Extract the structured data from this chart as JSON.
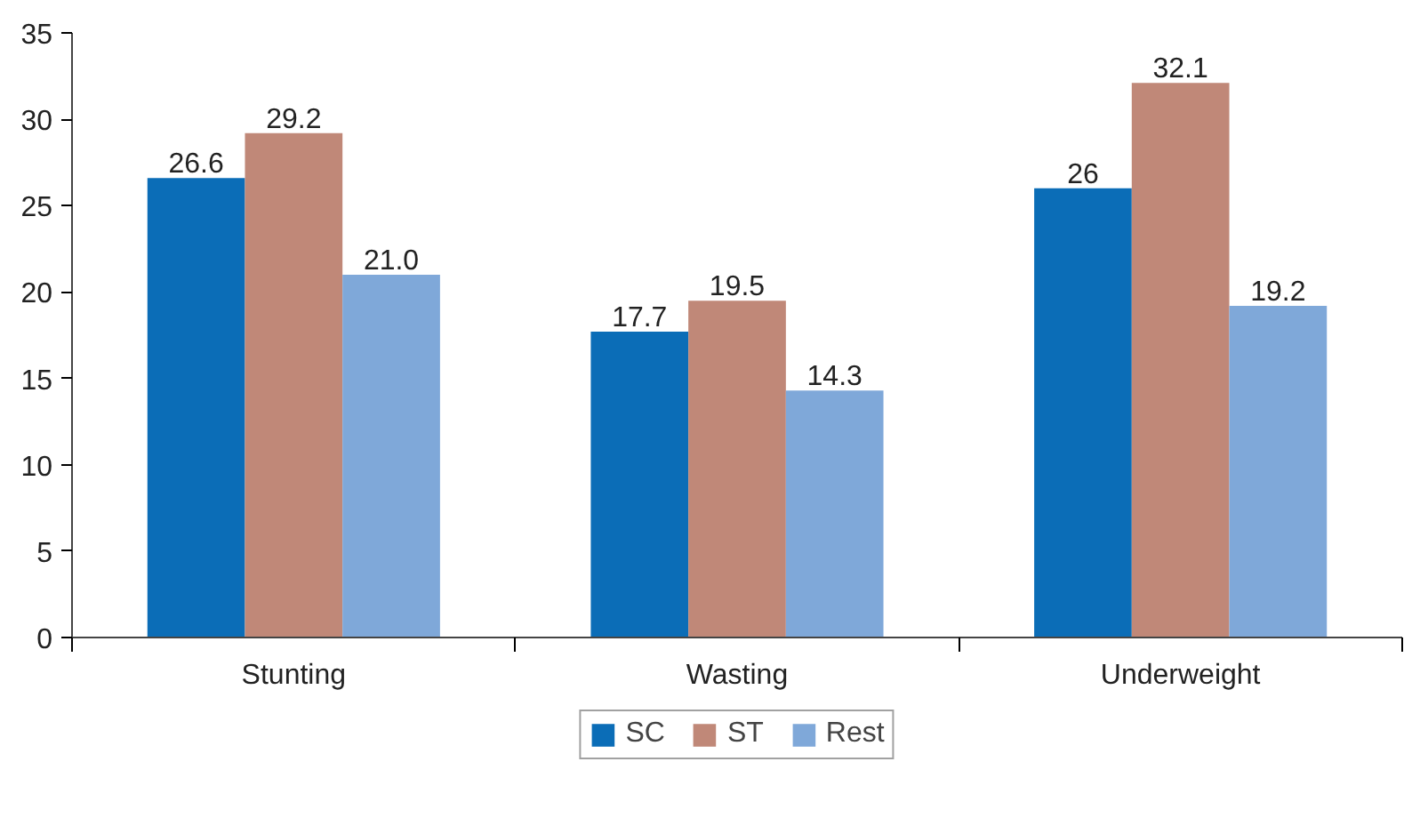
{
  "chart_data": {
    "type": "bar",
    "categories": [
      "Stunting",
      "Wasting",
      "Underweight"
    ],
    "series": [
      {
        "name": "SC",
        "color": "#0b6db7",
        "values": [
          26.6,
          17.7,
          26
        ],
        "value_labels": [
          "26.6",
          "17.7",
          "26"
        ]
      },
      {
        "name": "ST",
        "color": "#c08878",
        "values": [
          29.2,
          19.5,
          32.1
        ],
        "value_labels": [
          "29.2",
          "19.5",
          "32.1"
        ]
      },
      {
        "name": "Rest",
        "color": "#7fa8d9",
        "values": [
          21.0,
          14.3,
          19.2
        ],
        "value_labels": [
          "21.0",
          "14.3",
          "19.2"
        ]
      }
    ],
    "ylim": [
      0,
      35
    ],
    "yticks": [
      0,
      5,
      10,
      15,
      20,
      25,
      30,
      35
    ],
    "grid": false,
    "legend": "bottom"
  }
}
